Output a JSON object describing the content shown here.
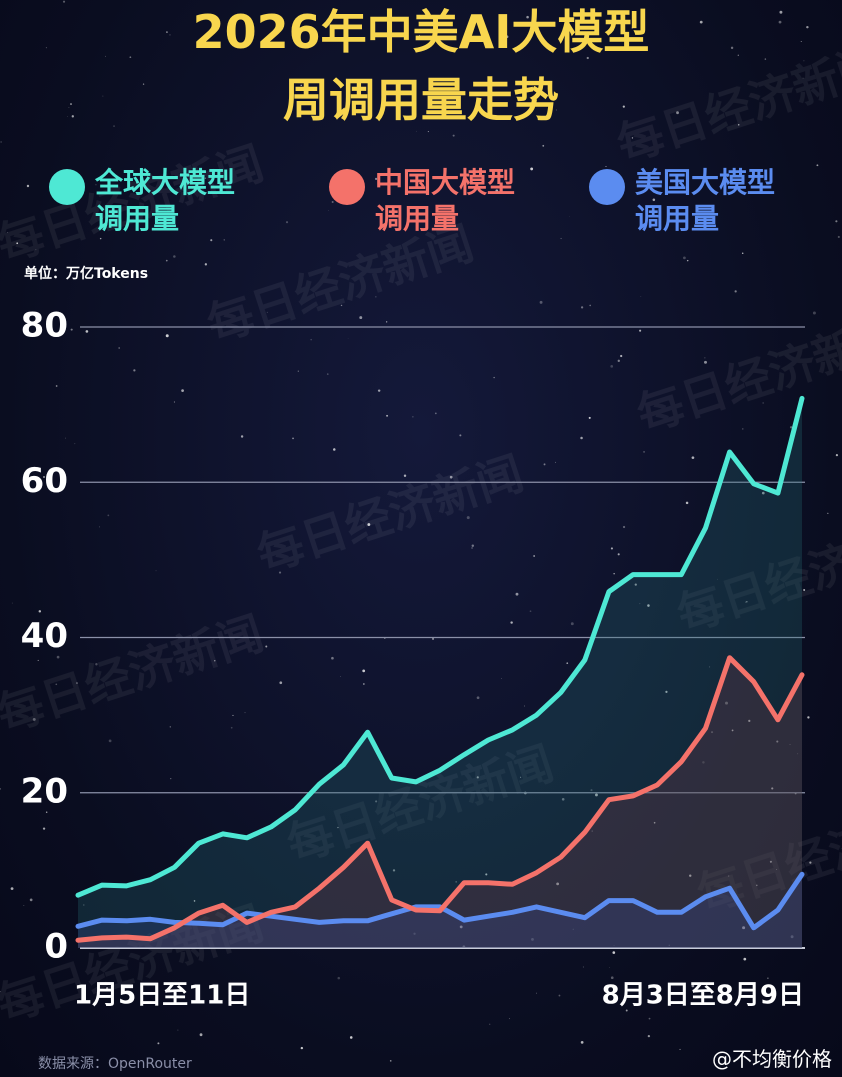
{
  "chart_data": {
    "type": "area-line",
    "title": [
      "2026年中美AI大模型",
      "周调用量走势"
    ],
    "unit": "单位：万亿Tokens",
    "source": "数据来源：OpenRouter",
    "watermark": "@不均衡价格",
    "background_watermark": "每日经济新闻",
    "categories": [
      "1月5日至11日",
      null,
      null,
      null,
      null,
      null,
      null,
      null,
      null,
      null,
      null,
      null,
      null,
      null,
      null,
      null,
      null,
      null,
      null,
      null,
      null,
      null,
      null,
      null,
      null,
      null,
      null,
      null,
      null,
      null,
      "8月3日至8月9日"
    ],
    "series": [
      {
        "name": "全球大模型调用量",
        "color": "#4ee8d4",
        "values": [
          6.8,
          8.1,
          8.0,
          8.8,
          10.4,
          13.5,
          14.7,
          14.2,
          15.6,
          17.8,
          21.1,
          23.6,
          27.8,
          21.9,
          21.4,
          22.9,
          24.9,
          26.8,
          28.1,
          30.0,
          32.9,
          37.1,
          45.9,
          48.1,
          48.1,
          48.1,
          54.1,
          63.9,
          59.8,
          58.6,
          70.8
        ]
      },
      {
        "name": "中国大模型调用量",
        "color": "#f4726a",
        "values": [
          1.0,
          1.3,
          1.4,
          1.2,
          2.6,
          4.5,
          5.5,
          3.3,
          4.6,
          5.3,
          7.7,
          10.4,
          13.5,
          6.2,
          4.9,
          4.8,
          8.4,
          8.4,
          8.2,
          9.7,
          11.7,
          14.9,
          19.1,
          19.6,
          21.0,
          24.0,
          28.3,
          37.4,
          34.3,
          29.4,
          35.2
        ]
      },
      {
        "name": "美国大模型调用量",
        "color": "#5b8cf0",
        "values": [
          2.8,
          3.6,
          3.5,
          3.7,
          3.3,
          3.2,
          3.0,
          4.5,
          4.1,
          3.7,
          3.3,
          3.5,
          3.5,
          4.4,
          5.3,
          5.3,
          3.6,
          4.1,
          4.6,
          5.3,
          4.6,
          3.9,
          6.1,
          6.1,
          4.6,
          4.6,
          6.6,
          7.7,
          2.6,
          4.9,
          9.5
        ]
      }
    ],
    "ylim": [
      0,
      80
    ],
    "yticks": [
      0,
      20,
      40,
      60,
      80
    ],
    "grid": true
  }
}
